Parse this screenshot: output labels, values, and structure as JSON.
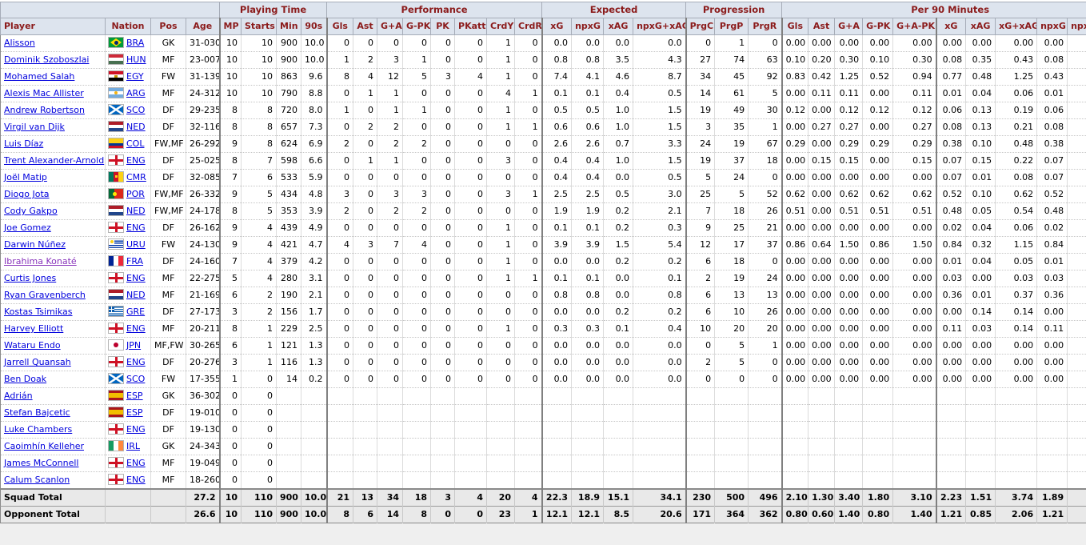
{
  "colors": {
    "header_bg": "#dde4ee",
    "header_text": "#8b1b1b",
    "link": "#0000dd",
    "visited_link": "#8833bb",
    "total_row_bg": "#e9e9e9"
  },
  "header": {
    "groups": [
      {
        "label": "",
        "span": 4
      },
      {
        "label": "Playing Time",
        "span": 4
      },
      {
        "label": "Performance",
        "span": 8
      },
      {
        "label": "Expected",
        "span": 4
      },
      {
        "label": "Progression",
        "span": 3
      },
      {
        "label": "Per 90 Minutes",
        "span": 10
      }
    ],
    "columns": [
      "Player",
      "Nation",
      "Pos",
      "Age",
      "MP",
      "Starts",
      "Min",
      "90s",
      "Gls",
      "Ast",
      "G+A",
      "G-PK",
      "PK",
      "PKatt",
      "CrdY",
      "CrdR",
      "xG",
      "npxG",
      "xAG",
      "npxG+xAG",
      "PrgC",
      "PrgP",
      "PrgR",
      "Gls",
      "Ast",
      "G+A",
      "G-PK",
      "G+A-PK",
      "xG",
      "xAG",
      "xG+xAG",
      "npxG",
      "npxG+xAG"
    ]
  },
  "players": [
    {
      "name": "Alisson",
      "nation": "BRA",
      "flag": "bra",
      "pos": "GK",
      "age": "31-030",
      "visited": false,
      "stats": [
        "10",
        "10",
        "900",
        "10.0",
        "0",
        "0",
        "0",
        "0",
        "0",
        "0",
        "1",
        "0",
        "0.0",
        "0.0",
        "0.0",
        "0.0",
        "0",
        "1",
        "0",
        "0.00",
        "0.00",
        "0.00",
        "0.00",
        "0.00",
        "0.00",
        "0.00",
        "0.00",
        "0.00"
      ]
    },
    {
      "name": "Dominik Szoboszlai",
      "nation": "HUN",
      "flag": "hun",
      "pos": "MF",
      "age": "23-007",
      "visited": false,
      "stats": [
        "10",
        "10",
        "900",
        "10.0",
        "1",
        "2",
        "3",
        "1",
        "0",
        "0",
        "1",
        "0",
        "0.8",
        "0.8",
        "3.5",
        "4.3",
        "27",
        "74",
        "63",
        "0.10",
        "0.20",
        "0.30",
        "0.10",
        "0.30",
        "0.08",
        "0.35",
        "0.43",
        "0.08"
      ]
    },
    {
      "name": "Mohamed Salah",
      "nation": "EGY",
      "flag": "egy",
      "pos": "FW",
      "age": "31-139",
      "visited": false,
      "stats": [
        "10",
        "10",
        "863",
        "9.6",
        "8",
        "4",
        "12",
        "5",
        "3",
        "4",
        "1",
        "0",
        "7.4",
        "4.1",
        "4.6",
        "8.7",
        "34",
        "45",
        "92",
        "0.83",
        "0.42",
        "1.25",
        "0.52",
        "0.94",
        "0.77",
        "0.48",
        "1.25",
        "0.43"
      ]
    },
    {
      "name": "Alexis Mac Allister",
      "nation": "ARG",
      "flag": "arg",
      "pos": "MF",
      "age": "24-312",
      "visited": false,
      "stats": [
        "10",
        "10",
        "790",
        "8.8",
        "0",
        "1",
        "1",
        "0",
        "0",
        "0",
        "4",
        "1",
        "0.1",
        "0.1",
        "0.4",
        "0.5",
        "14",
        "61",
        "5",
        "0.00",
        "0.11",
        "0.11",
        "0.00",
        "0.11",
        "0.01",
        "0.04",
        "0.06",
        "0.01"
      ]
    },
    {
      "name": "Andrew Robertson",
      "nation": "SCO",
      "flag": "sco",
      "pos": "DF",
      "age": "29-235",
      "visited": false,
      "stats": [
        "8",
        "8",
        "720",
        "8.0",
        "1",
        "0",
        "1",
        "1",
        "0",
        "0",
        "1",
        "0",
        "0.5",
        "0.5",
        "1.0",
        "1.5",
        "19",
        "49",
        "30",
        "0.12",
        "0.00",
        "0.12",
        "0.12",
        "0.12",
        "0.06",
        "0.13",
        "0.19",
        "0.06"
      ]
    },
    {
      "name": "Virgil van Dijk",
      "nation": "NED",
      "flag": "ned",
      "pos": "DF",
      "age": "32-116",
      "visited": false,
      "stats": [
        "8",
        "8",
        "657",
        "7.3",
        "0",
        "2",
        "2",
        "0",
        "0",
        "0",
        "1",
        "1",
        "0.6",
        "0.6",
        "1.0",
        "1.5",
        "3",
        "35",
        "1",
        "0.00",
        "0.27",
        "0.27",
        "0.00",
        "0.27",
        "0.08",
        "0.13",
        "0.21",
        "0.08"
      ]
    },
    {
      "name": "Luis Díaz",
      "nation": "COL",
      "flag": "col",
      "pos": "FW,MF",
      "age": "26-292",
      "visited": false,
      "stats": [
        "9",
        "8",
        "624",
        "6.9",
        "2",
        "0",
        "2",
        "2",
        "0",
        "0",
        "0",
        "0",
        "2.6",
        "2.6",
        "0.7",
        "3.3",
        "24",
        "19",
        "67",
        "0.29",
        "0.00",
        "0.29",
        "0.29",
        "0.29",
        "0.38",
        "0.10",
        "0.48",
        "0.38"
      ]
    },
    {
      "name": "Trent Alexander-Arnold",
      "nation": "ENG",
      "flag": "eng",
      "pos": "DF",
      "age": "25-025",
      "visited": false,
      "stats": [
        "8",
        "7",
        "598",
        "6.6",
        "0",
        "1",
        "1",
        "0",
        "0",
        "0",
        "3",
        "0",
        "0.4",
        "0.4",
        "1.0",
        "1.5",
        "19",
        "37",
        "18",
        "0.00",
        "0.15",
        "0.15",
        "0.00",
        "0.15",
        "0.07",
        "0.15",
        "0.22",
        "0.07"
      ]
    },
    {
      "name": "Joël Matip",
      "nation": "CMR",
      "flag": "cmr",
      "pos": "DF",
      "age": "32-085",
      "visited": false,
      "stats": [
        "7",
        "6",
        "533",
        "5.9",
        "0",
        "0",
        "0",
        "0",
        "0",
        "0",
        "0",
        "0",
        "0.4",
        "0.4",
        "0.0",
        "0.5",
        "5",
        "24",
        "0",
        "0.00",
        "0.00",
        "0.00",
        "0.00",
        "0.00",
        "0.07",
        "0.01",
        "0.08",
        "0.07"
      ]
    },
    {
      "name": "Diogo Jota",
      "nation": "POR",
      "flag": "por",
      "pos": "FW,MF",
      "age": "26-332",
      "visited": false,
      "stats": [
        "9",
        "5",
        "434",
        "4.8",
        "3",
        "0",
        "3",
        "3",
        "0",
        "0",
        "3",
        "1",
        "2.5",
        "2.5",
        "0.5",
        "3.0",
        "25",
        "5",
        "52",
        "0.62",
        "0.00",
        "0.62",
        "0.62",
        "0.62",
        "0.52",
        "0.10",
        "0.62",
        "0.52"
      ]
    },
    {
      "name": "Cody Gakpo",
      "nation": "NED",
      "flag": "ned",
      "pos": "FW,MF",
      "age": "24-178",
      "visited": false,
      "stats": [
        "8",
        "5",
        "353",
        "3.9",
        "2",
        "0",
        "2",
        "2",
        "0",
        "0",
        "0",
        "0",
        "1.9",
        "1.9",
        "0.2",
        "2.1",
        "7",
        "18",
        "26",
        "0.51",
        "0.00",
        "0.51",
        "0.51",
        "0.51",
        "0.48",
        "0.05",
        "0.54",
        "0.48"
      ]
    },
    {
      "name": "Joe Gomez",
      "nation": "ENG",
      "flag": "eng",
      "pos": "DF",
      "age": "26-162",
      "visited": false,
      "stats": [
        "9",
        "4",
        "439",
        "4.9",
        "0",
        "0",
        "0",
        "0",
        "0",
        "0",
        "1",
        "0",
        "0.1",
        "0.1",
        "0.2",
        "0.3",
        "9",
        "25",
        "21",
        "0.00",
        "0.00",
        "0.00",
        "0.00",
        "0.00",
        "0.02",
        "0.04",
        "0.06",
        "0.02"
      ]
    },
    {
      "name": "Darwin Núñez",
      "nation": "URU",
      "flag": "uru",
      "pos": "FW",
      "age": "24-130",
      "visited": false,
      "stats": [
        "9",
        "4",
        "421",
        "4.7",
        "4",
        "3",
        "7",
        "4",
        "0",
        "0",
        "1",
        "0",
        "3.9",
        "3.9",
        "1.5",
        "5.4",
        "12",
        "17",
        "37",
        "0.86",
        "0.64",
        "1.50",
        "0.86",
        "1.50",
        "0.84",
        "0.32",
        "1.15",
        "0.84"
      ]
    },
    {
      "name": "Ibrahima Konaté",
      "nation": "FRA",
      "flag": "fra",
      "pos": "DF",
      "age": "24-160",
      "visited": true,
      "stats": [
        "7",
        "4",
        "379",
        "4.2",
        "0",
        "0",
        "0",
        "0",
        "0",
        "0",
        "1",
        "0",
        "0.0",
        "0.0",
        "0.2",
        "0.2",
        "6",
        "18",
        "0",
        "0.00",
        "0.00",
        "0.00",
        "0.00",
        "0.00",
        "0.01",
        "0.04",
        "0.05",
        "0.01"
      ]
    },
    {
      "name": "Curtis Jones",
      "nation": "ENG",
      "flag": "eng",
      "pos": "MF",
      "age": "22-275",
      "visited": false,
      "stats": [
        "5",
        "4",
        "280",
        "3.1",
        "0",
        "0",
        "0",
        "0",
        "0",
        "0",
        "1",
        "1",
        "0.1",
        "0.1",
        "0.0",
        "0.1",
        "2",
        "19",
        "24",
        "0.00",
        "0.00",
        "0.00",
        "0.00",
        "0.00",
        "0.03",
        "0.00",
        "0.03",
        "0.03"
      ]
    },
    {
      "name": "Ryan Gravenberch",
      "nation": "NED",
      "flag": "ned",
      "pos": "MF",
      "age": "21-169",
      "visited": false,
      "stats": [
        "6",
        "2",
        "190",
        "2.1",
        "0",
        "0",
        "0",
        "0",
        "0",
        "0",
        "0",
        "0",
        "0.8",
        "0.8",
        "0.0",
        "0.8",
        "6",
        "13",
        "13",
        "0.00",
        "0.00",
        "0.00",
        "0.00",
        "0.00",
        "0.36",
        "0.01",
        "0.37",
        "0.36"
      ]
    },
    {
      "name": "Kostas Tsimikas",
      "nation": "GRE",
      "flag": "gre",
      "pos": "DF",
      "age": "27-173",
      "visited": false,
      "stats": [
        "3",
        "2",
        "156",
        "1.7",
        "0",
        "0",
        "0",
        "0",
        "0",
        "0",
        "0",
        "0",
        "0.0",
        "0.0",
        "0.2",
        "0.2",
        "6",
        "10",
        "26",
        "0.00",
        "0.00",
        "0.00",
        "0.00",
        "0.00",
        "0.00",
        "0.14",
        "0.14",
        "0.00"
      ]
    },
    {
      "name": "Harvey Elliott",
      "nation": "ENG",
      "flag": "eng",
      "pos": "MF",
      "age": "20-211",
      "visited": false,
      "stats": [
        "8",
        "1",
        "229",
        "2.5",
        "0",
        "0",
        "0",
        "0",
        "0",
        "0",
        "1",
        "0",
        "0.3",
        "0.3",
        "0.1",
        "0.4",
        "10",
        "20",
        "20",
        "0.00",
        "0.00",
        "0.00",
        "0.00",
        "0.00",
        "0.11",
        "0.03",
        "0.14",
        "0.11"
      ]
    },
    {
      "name": "Wataru Endo",
      "nation": "JPN",
      "flag": "jpn",
      "pos": "MF,FW",
      "age": "30-265",
      "visited": false,
      "stats": [
        "6",
        "1",
        "121",
        "1.3",
        "0",
        "0",
        "0",
        "0",
        "0",
        "0",
        "0",
        "0",
        "0.0",
        "0.0",
        "0.0",
        "0.0",
        "0",
        "5",
        "1",
        "0.00",
        "0.00",
        "0.00",
        "0.00",
        "0.00",
        "0.00",
        "0.00",
        "0.00",
        "0.00"
      ]
    },
    {
      "name": "Jarrell Quansah",
      "nation": "ENG",
      "flag": "eng",
      "pos": "DF",
      "age": "20-276",
      "visited": false,
      "stats": [
        "3",
        "1",
        "116",
        "1.3",
        "0",
        "0",
        "0",
        "0",
        "0",
        "0",
        "0",
        "0",
        "0.0",
        "0.0",
        "0.0",
        "0.0",
        "2",
        "5",
        "0",
        "0.00",
        "0.00",
        "0.00",
        "0.00",
        "0.00",
        "0.00",
        "0.00",
        "0.00",
        "0.00"
      ]
    },
    {
      "name": "Ben Doak",
      "nation": "SCO",
      "flag": "sco",
      "pos": "FW",
      "age": "17-355",
      "visited": false,
      "stats": [
        "1",
        "0",
        "14",
        "0.2",
        "0",
        "0",
        "0",
        "0",
        "0",
        "0",
        "0",
        "0",
        "0.0",
        "0.0",
        "0.0",
        "0.0",
        "0",
        "0",
        "0",
        "0.00",
        "0.00",
        "0.00",
        "0.00",
        "0.00",
        "0.00",
        "0.00",
        "0.00",
        "0.00"
      ]
    },
    {
      "name": "Adrián",
      "nation": "ESP",
      "flag": "esp",
      "pos": "GK",
      "age": "36-302",
      "visited": false,
      "stats": [
        "0",
        "0",
        "",
        "",
        "",
        "",
        "",
        "",
        "",
        "",
        "",
        "",
        "",
        "",
        "",
        "",
        "",
        "",
        "",
        "",
        "",
        "",
        "",
        "",
        "",
        "",
        "",
        ""
      ]
    },
    {
      "name": "Stefan Bajcetic",
      "nation": "ESP",
      "flag": "esp",
      "pos": "DF",
      "age": "19-010",
      "visited": false,
      "stats": [
        "0",
        "0",
        "",
        "",
        "",
        "",
        "",
        "",
        "",
        "",
        "",
        "",
        "",
        "",
        "",
        "",
        "",
        "",
        "",
        "",
        "",
        "",
        "",
        "",
        "",
        "",
        "",
        ""
      ]
    },
    {
      "name": "Luke Chambers",
      "nation": "ENG",
      "flag": "eng",
      "pos": "DF",
      "age": "19-130",
      "visited": false,
      "stats": [
        "0",
        "0",
        "",
        "",
        "",
        "",
        "",
        "",
        "",
        "",
        "",
        "",
        "",
        "",
        "",
        "",
        "",
        "",
        "",
        "",
        "",
        "",
        "",
        "",
        "",
        "",
        "",
        ""
      ]
    },
    {
      "name": "Caoimhín Kelleher",
      "nation": "IRL",
      "flag": "irl",
      "pos": "GK",
      "age": "24-343",
      "visited": false,
      "stats": [
        "0",
        "0",
        "",
        "",
        "",
        "",
        "",
        "",
        "",
        "",
        "",
        "",
        "",
        "",
        "",
        "",
        "",
        "",
        "",
        "",
        "",
        "",
        "",
        "",
        "",
        "",
        "",
        ""
      ]
    },
    {
      "name": "James McConnell",
      "nation": "ENG",
      "flag": "eng",
      "pos": "MF",
      "age": "19-049",
      "visited": false,
      "stats": [
        "0",
        "0",
        "",
        "",
        "",
        "",
        "",
        "",
        "",
        "",
        "",
        "",
        "",
        "",
        "",
        "",
        "",
        "",
        "",
        "",
        "",
        "",
        "",
        "",
        "",
        "",
        "",
        ""
      ]
    },
    {
      "name": "Calum Scanlon",
      "nation": "ENG",
      "flag": "eng",
      "pos": "MF",
      "age": "18-260",
      "visited": false,
      "stats": [
        "0",
        "0",
        "",
        "",
        "",
        "",
        "",
        "",
        "",
        "",
        "",
        "",
        "",
        "",
        "",
        "",
        "",
        "",
        "",
        "",
        "",
        "",
        "",
        "",
        "",
        "",
        "",
        ""
      ]
    }
  ],
  "totals": [
    {
      "label": "Squad Total",
      "age": "27.2",
      "stats": [
        "10",
        "110",
        "900",
        "10.0",
        "21",
        "13",
        "34",
        "18",
        "3",
        "4",
        "20",
        "4",
        "22.3",
        "18.9",
        "15.1",
        "34.1",
        "230",
        "500",
        "496",
        "2.10",
        "1.30",
        "3.40",
        "1.80",
        "3.10",
        "2.23",
        "1.51",
        "3.74",
        "1.89"
      ]
    },
    {
      "label": "Opponent Total",
      "age": "26.6",
      "stats": [
        "10",
        "110",
        "900",
        "10.0",
        "8",
        "6",
        "14",
        "8",
        "0",
        "0",
        "23",
        "1",
        "12.1",
        "12.1",
        "8.5",
        "20.6",
        "171",
        "364",
        "362",
        "0.80",
        "0.60",
        "1.40",
        "0.80",
        "1.40",
        "1.21",
        "0.85",
        "2.06",
        "1.21"
      ]
    }
  ]
}
